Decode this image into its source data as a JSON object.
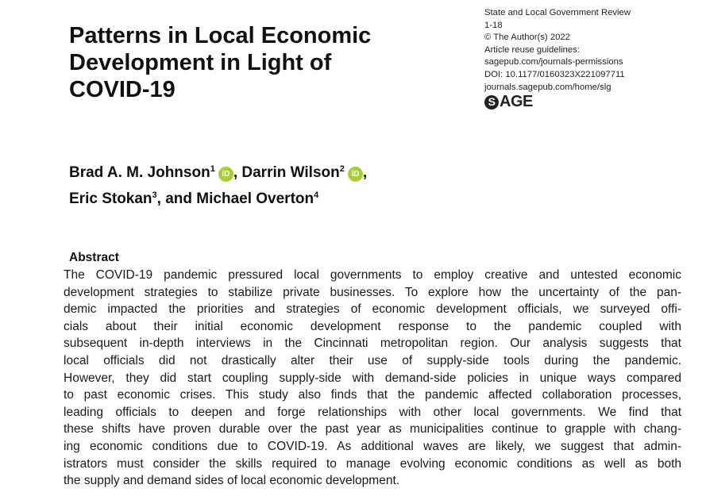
{
  "title_lines": [
    "Patterns in Local Economic",
    "Development in Light of",
    "COVID-19"
  ],
  "journal": {
    "name": "State and Local Government Review",
    "pages": "1-18",
    "copyright": "© The Author(s) 2022",
    "reuse_label": "Article reuse guidelines:",
    "reuse_link": "sagepub.com/journals-permissions",
    "doi": "DOI: 10.1177/0160323X221097711",
    "journal_link": "journals.sagepub.com/home/slg",
    "publisher_logo": "SAGE"
  },
  "authors": [
    {
      "name": "Brad A. M. Johnson",
      "affil": "1",
      "orcid": true
    },
    {
      "name": "Darrin Wilson",
      "affil": "2",
      "orcid": true
    },
    {
      "name": "Eric Stokan",
      "affil": "3"
    },
    {
      "name": "Michael Overton",
      "affil": "4"
    }
  ],
  "orcid_label": "iD",
  "abstract": {
    "heading": "Abstract",
    "lines": [
      "The COVID-19 pandemic pressured local governments to employ creative and untested economic",
      "development strategies to stabilize private businesses. To explore how the uncertainty of the pan-",
      "demic impacted the priorities and strategies of economic development officials, we surveyed offi-",
      "cials about their initial economic development response to the pandemic coupled with",
      "subsequent in-depth interviews in the Cincinnati metropolitan region. Our analysis suggests that",
      "local officials did not drastically alter their use of supply-side tools during the pandemic.",
      "However, they did start coupling supply-side with demand-side policies in unique ways compared",
      "to past economic crises. This study also finds that the pandemic affected collaboration processes,",
      "leading officials to deepen and forge relationships with other local governments. We find that",
      "these shifts have proven durable over the past year as municipalities continue to grapple with chang-",
      "ing economic conditions due to COVID-19. As additional waves are likely, we suggest that admin-",
      "istrators must consider the skills required to manage evolving economic conditions as well as both",
      "the supply and demand sides of local economic development."
    ]
  },
  "colors": {
    "orcid": "#a6ce39",
    "text": "#1a1a1a"
  }
}
